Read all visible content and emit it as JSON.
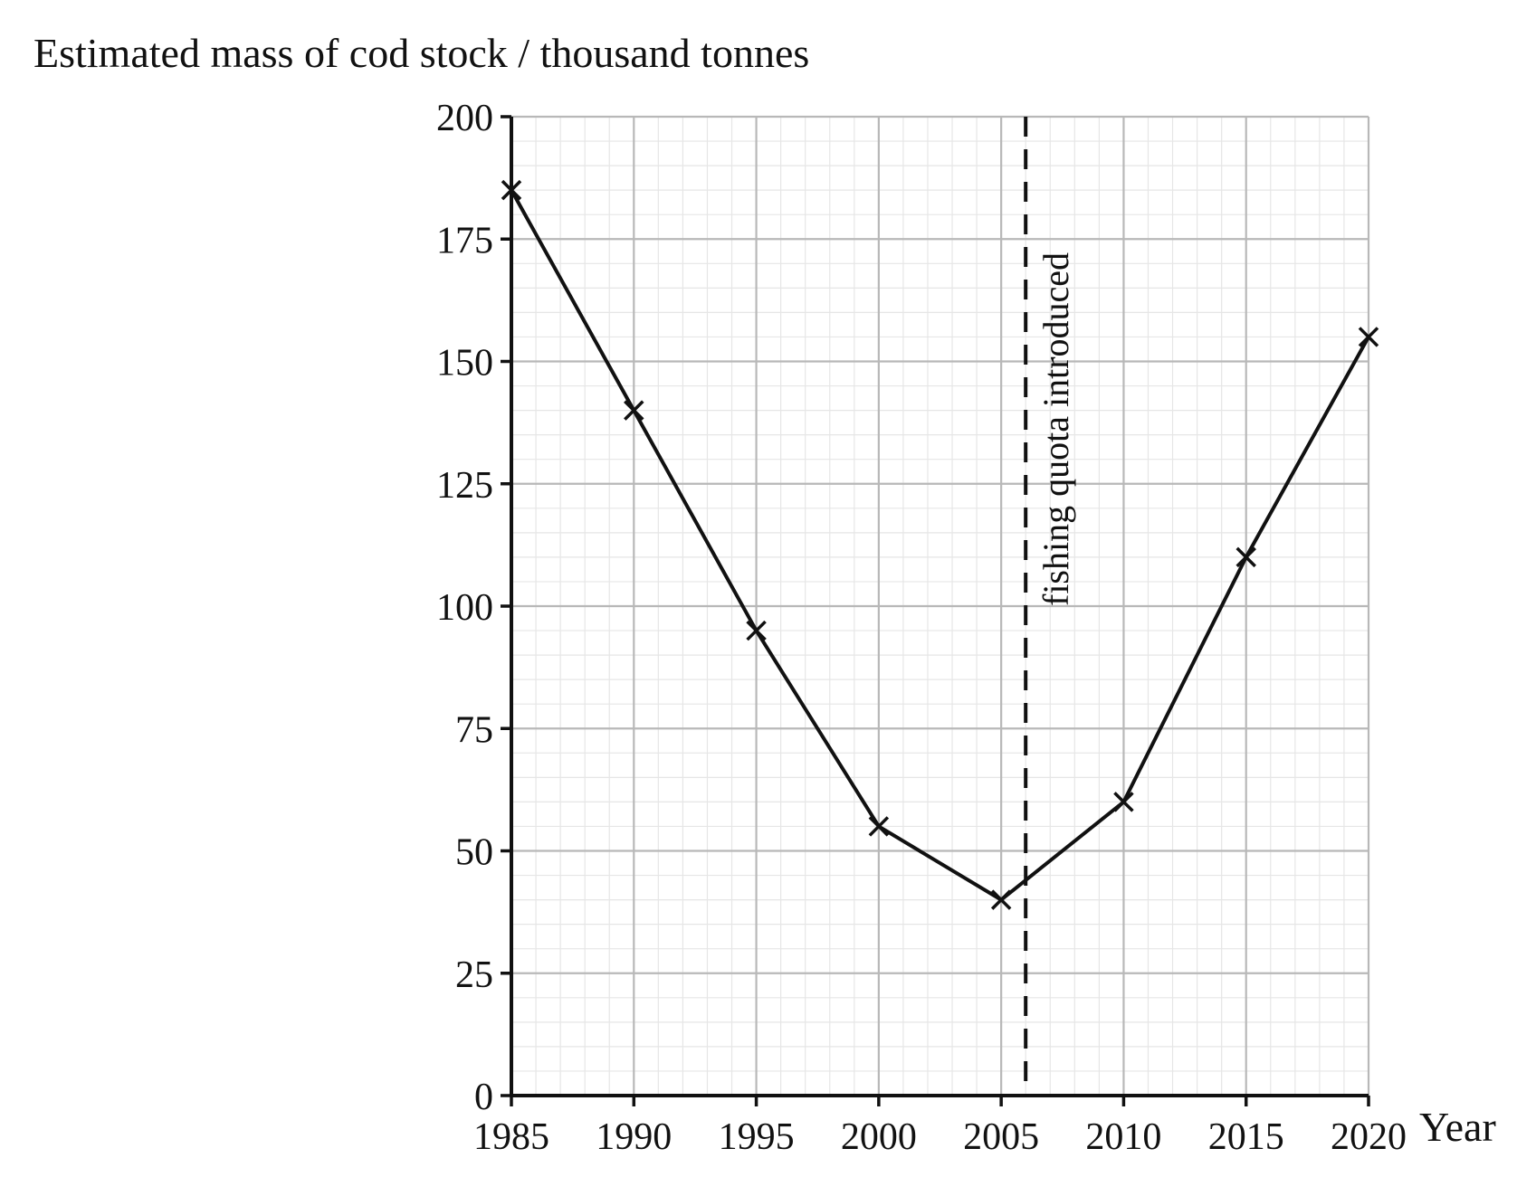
{
  "chart_data": {
    "type": "line",
    "ylabel": "Estimated mass of cod stock / thousand tonnes",
    "xlabel": "Year",
    "xlim": [
      1985,
      2020
    ],
    "ylim": [
      0,
      200
    ],
    "x_major_step": 5,
    "x_minor_step": 1,
    "y_major_step": 25,
    "y_minor_step": 5,
    "grid": true,
    "x_ticks": [
      "1985",
      "1990",
      "1995",
      "2000",
      "2005",
      "2010",
      "2015",
      "2020"
    ],
    "y_ticks": [
      "0",
      "25",
      "50",
      "75",
      "100",
      "125",
      "150",
      "175",
      "200"
    ],
    "series": [
      {
        "x": [
          1985,
          1990,
          1995,
          2000,
          2005,
          2010,
          2015,
          2020
        ],
        "values": [
          185,
          140,
          95,
          55,
          40,
          60,
          110,
          155
        ],
        "marker": "x",
        "color": "#111111"
      }
    ],
    "annotations": [
      {
        "type": "vline",
        "x": 2006,
        "style": "dashed",
        "text": "fishing quota introduced"
      }
    ],
    "colors": {
      "line": "#111111",
      "major_grid": "#b8b8b8",
      "minor_grid": "#e6e6e6",
      "axis": "#111111"
    }
  }
}
